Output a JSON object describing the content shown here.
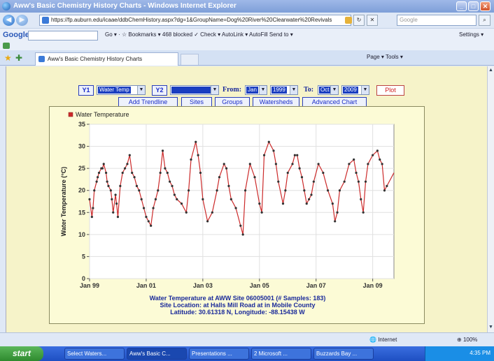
{
  "window": {
    "title": "Aww's Basic Chemistry History Charts - Windows Internet Explorer",
    "minimize": "_",
    "maximize": "□",
    "close": "✕"
  },
  "address_bar": {
    "url": "https://fp.auburn.edu/icaae/ddbChemHistory.aspx?dg=1&GroupName=Dog%20River%20Clearwater%20Revivals",
    "search_placeholder": "Google"
  },
  "google_toolbar": {
    "logo": "Google",
    "items": "Go ▾   ·   ☆ Bookmarks ▾   468 blocked   ✓ Check ▾   AutoLink ▾   AutoFill   Send to ▾",
    "settings": "Settings ▾"
  },
  "tab_row": {
    "tab_title": "Aww's Basic Chemistry History Charts",
    "tools": "Page ▾   Tools ▾"
  },
  "controls": {
    "y1_label": "Y1",
    "y1_value": "Water Temp",
    "y2_label": "Y2",
    "y2_value": "",
    "from_label": "From:",
    "from_month": "Jan",
    "from_year": "1999",
    "to_label": "To:",
    "to_month": "Oct",
    "to_year": "2009",
    "plot": "Plot",
    "add_trendline": "Add Trendline",
    "sites": "Sites",
    "groups": "Groups",
    "watersheds": "Watersheds",
    "advanced_chart": "Advanced Chart"
  },
  "chart_data": {
    "type": "line",
    "legend": "Water Temperature",
    "legend_position": "top-left",
    "ylabel": "Water Temperature (°C)",
    "ylim": [
      0,
      35
    ],
    "yticks": [
      0,
      5,
      10,
      15,
      20,
      25,
      30,
      35
    ],
    "xlim": [
      "1999-01",
      "2009-10"
    ],
    "xtick_labels": [
      "Jan 99",
      "Jan 01",
      "Jan 03",
      "Jan 05",
      "Jan 07",
      "Jan 09"
    ],
    "grid": true,
    "color": "#cc2a2a",
    "series": [
      {
        "name": "Water Temperature",
        "x": [
          "1999-01",
          "1999-02",
          "1999-02",
          "1999-03",
          "1999-04",
          "1999-04",
          "1999-05",
          "1999-06",
          "1999-06",
          "1999-07",
          "1999-08",
          "1999-08",
          "1999-09",
          "1999-10",
          "1999-10",
          "1999-11",
          "1999-12",
          "1999-12",
          "2000-01",
          "2000-02",
          "2000-03",
          "2000-04",
          "2000-05",
          "2000-06",
          "2000-07",
          "2000-08",
          "2000-09",
          "2000-10",
          "2000-11",
          "2000-12",
          "2001-01",
          "2001-02",
          "2001-03",
          "2001-04",
          "2001-05",
          "2001-06",
          "2001-07",
          "2001-08",
          "2001-09",
          "2001-10",
          "2001-11",
          "2001-12",
          "2002-01",
          "2002-02",
          "2002-04",
          "2002-06",
          "2002-07",
          "2002-08",
          "2002-10",
          "2002-11",
          "2002-12",
          "2003-01",
          "2003-03",
          "2003-05",
          "2003-07",
          "2003-08",
          "2003-10",
          "2003-11",
          "2003-12",
          "2004-01",
          "2004-03",
          "2004-05",
          "2004-06",
          "2004-07",
          "2004-09",
          "2004-11",
          "2005-01",
          "2005-02",
          "2005-03",
          "2005-05",
          "2005-07",
          "2005-08",
          "2005-09",
          "2005-11",
          "2005-12",
          "2006-01",
          "2006-03",
          "2006-04",
          "2006-05",
          "2006-06",
          "2006-07",
          "2006-08",
          "2006-09",
          "2006-10",
          "2006-11",
          "2006-12",
          "2007-02",
          "2007-04",
          "2007-06",
          "2007-08",
          "2007-09",
          "2007-10",
          "2007-11",
          "2008-01",
          "2008-03",
          "2008-05",
          "2008-06",
          "2008-07",
          "2008-08",
          "2008-09",
          "2008-10",
          "2008-11",
          "2009-01",
          "2009-03",
          "2009-04",
          "2009-05",
          "2009-06",
          "2009-07",
          "2009-10"
        ],
        "values": [
          18,
          14,
          16,
          20,
          22,
          23,
          24,
          25,
          25,
          26,
          24,
          22,
          21,
          20,
          18,
          15,
          19,
          17,
          14,
          21,
          24,
          25,
          26,
          28,
          24,
          23,
          21,
          20,
          18,
          16,
          14,
          13,
          12,
          16,
          18,
          20,
          24,
          29,
          25,
          24,
          22,
          21,
          19,
          18,
          17,
          15,
          20,
          27,
          31,
          28,
          24,
          18,
          13,
          15,
          20,
          23,
          26,
          25,
          21,
          18,
          16,
          12,
          10,
          20,
          26,
          23,
          17,
          15,
          28,
          31,
          29,
          26,
          22,
          17,
          20,
          24,
          26,
          28,
          28,
          25,
          23,
          20,
          17,
          18,
          19,
          22,
          26,
          24,
          20,
          17,
          13,
          15,
          20,
          22,
          26,
          27,
          24,
          22,
          18,
          15,
          22,
          26,
          28,
          29,
          27,
          26,
          20,
          21,
          24
        ]
      }
    ],
    "caption_lines": [
      "Water Temperature at AWW Site 06005001 (# Samples: 183)",
      "Site Location: at Halls Mill Road at  in Mobile County",
      "Latitude: 30.61318 N, Longitude: -88.15438 W"
    ]
  },
  "status_bar": {
    "zone": "Internet",
    "zoom": "100%"
  },
  "taskbar": {
    "start": "start",
    "items": [
      "Select Waters...",
      "Aww's Basic C...",
      "Presentations ...",
      "2 Microsoft ...",
      "Buzzards Bay ..."
    ],
    "clock": "4:35 PM"
  }
}
